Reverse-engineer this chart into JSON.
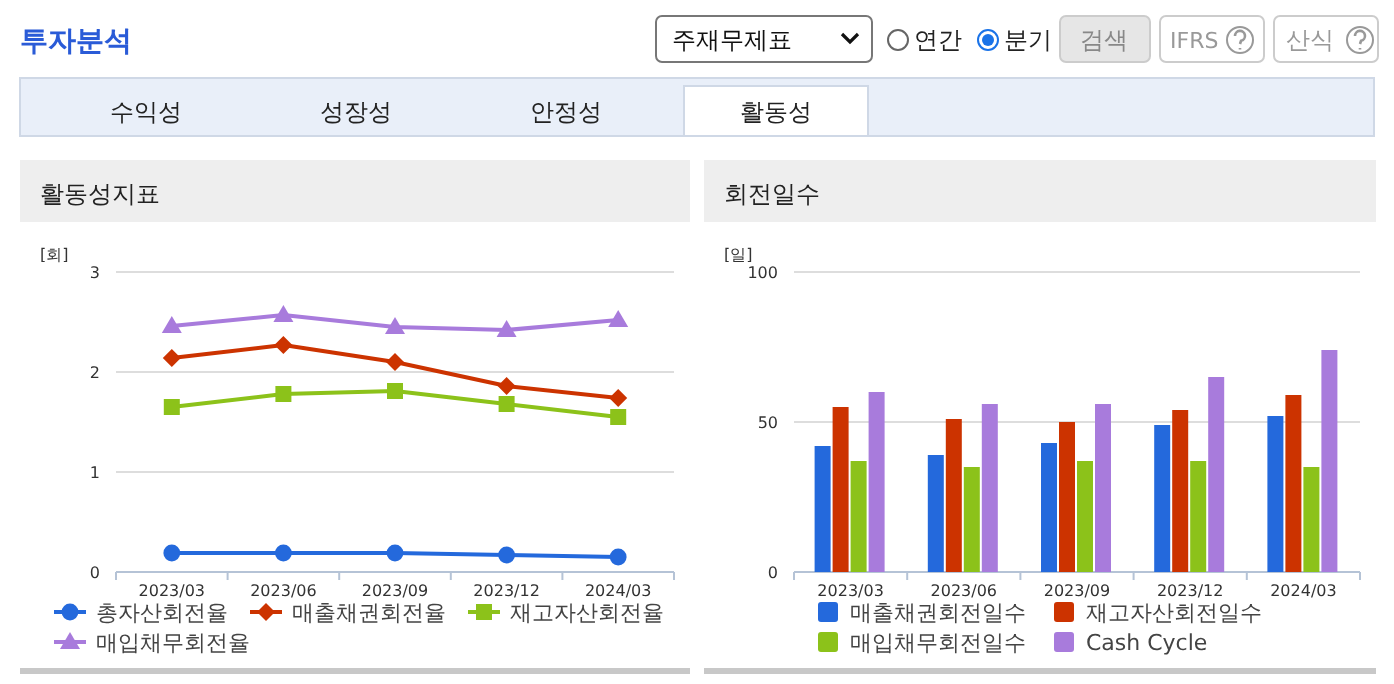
{
  "chart_data": [
    {
      "type": "other",
      "title": "투자분석",
      "annotations": [
        "주재무제표",
        "연간",
        "분기",
        "검색",
        "IFRS",
        "산식",
        "수익성",
        "성장성",
        "안정성",
        "활동성"
      ]
    },
    {
      "type": "line",
      "title": "활동성지표",
      "ylabel": "[회]",
      "categories": [
        "2023/03",
        "2023/06",
        "2023/09",
        "2023/12",
        "2024/03"
      ],
      "ylim": [
        0,
        3
      ],
      "yticks": [
        0,
        1,
        2,
        3
      ],
      "grid": "y",
      "legend": "bottom",
      "series": [
        {
          "name": "총자산회전율",
          "color": "#2469dc",
          "marker": "circle",
          "values": [
            0.19,
            0.19,
            0.19,
            0.17,
            0.15
          ]
        },
        {
          "name": "매출채권회전율",
          "color": "#cc3300",
          "marker": "diamond",
          "values": [
            2.14,
            2.27,
            2.1,
            1.86,
            1.74
          ]
        },
        {
          "name": "재고자산회전율",
          "color": "#8cc21a",
          "marker": "square",
          "values": [
            1.65,
            1.78,
            1.81,
            1.68,
            1.55
          ]
        },
        {
          "name": "매입채무회전율",
          "color": "#a87bdc",
          "marker": "triangle",
          "values": [
            2.46,
            2.57,
            2.45,
            2.42,
            2.52
          ]
        }
      ]
    },
    {
      "type": "bar",
      "title": "회전일수",
      "ylabel": "[일]",
      "categories": [
        "2023/03",
        "2023/06",
        "2023/09",
        "2023/12",
        "2024/03"
      ],
      "ylim": [
        0,
        100
      ],
      "yticks": [
        0,
        50,
        100
      ],
      "grid": "y",
      "legend": "bottom",
      "series": [
        {
          "name": "매출채권회전일수",
          "color": "#2469dc",
          "values": [
            42,
            39,
            43,
            49,
            52
          ]
        },
        {
          "name": "재고자산회전일수",
          "color": "#cc3300",
          "values": [
            55,
            51,
            50,
            54,
            59
          ]
        },
        {
          "name": "매입채무회전일수",
          "color": "#8cc21a",
          "values": [
            37,
            35,
            37,
            37,
            35
          ]
        },
        {
          "name": "Cash Cycle",
          "color": "#a87bdc",
          "values": [
            60,
            56,
            56,
            65,
            74
          ]
        }
      ]
    }
  ]
}
